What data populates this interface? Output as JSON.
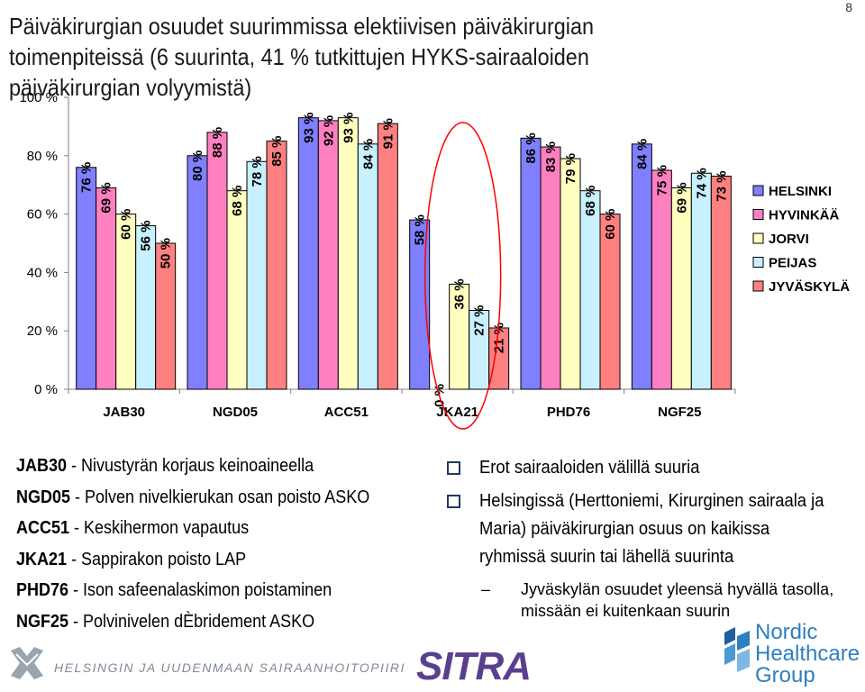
{
  "title": "Päiväkirurgian osuudet suurimmissa elektiivisen päiväkirurgian toimenpiteissä (6 suurinta, 41 % tutkittujen HYKS-sairaaloiden päiväkirurgian volyymistä)",
  "page_number": "8",
  "chart_data": {
    "type": "bar",
    "categories": [
      "JAB30",
      "NGD05",
      "ACC51",
      "JKA21",
      "PHD76",
      "NGF25"
    ],
    "series": [
      {
        "name": "HELSINKI",
        "color": "#8080ff",
        "values": [
          76,
          80,
          93,
          58,
          86,
          84
        ],
        "labels": [
          "76 %",
          "80 %",
          "93 %",
          "58 %",
          "86 %",
          "84 %"
        ]
      },
      {
        "name": "HYVINKÄÄ",
        "color": "#ff80c0",
        "values": [
          69,
          88,
          92,
          0,
          83,
          75
        ],
        "labels": [
          "69 %",
          "88 %",
          "92 %",
          "0 %",
          "83 %",
          "75 %"
        ]
      },
      {
        "name": "JORVI",
        "color": "#ffffc0",
        "values": [
          60,
          68,
          93,
          36,
          79,
          69
        ],
        "labels": [
          "60 %",
          "68 %",
          "93 %",
          "36 %",
          "79 %",
          "69 %"
        ]
      },
      {
        "name": "PEIJAS",
        "color": "#c8f0ff",
        "values": [
          56,
          78,
          84,
          27,
          68,
          74
        ],
        "labels": [
          "56 %",
          "78 %",
          "84 %",
          "27 %",
          "68 %",
          "74 %"
        ]
      },
      {
        "name": "JYVÄSKYLÄ",
        "color": "#ff8080",
        "values": [
          50,
          85,
          91,
          21,
          60,
          73
        ],
        "labels": [
          "50 %",
          "85 %",
          "91 %",
          "21 %",
          "60 %",
          "73 %"
        ]
      }
    ],
    "yticks": [
      "0 %",
      "20 %",
      "40 %",
      "60 %",
      "80 %",
      "100 %"
    ],
    "ylim": [
      0,
      100
    ],
    "legend_position": "right",
    "grid": false
  },
  "definitions": [
    {
      "code": "JAB30",
      "text": " - Nivustyrän korjaus keinoaineella"
    },
    {
      "code": "NGD05",
      "text": " - Polven nivelkierukan osan poisto ASKO"
    },
    {
      "code": "ACC51",
      "text": " - Keskihermon vapautus"
    },
    {
      "code": "JKA21",
      "text": " - Sappirakon poisto LAP"
    },
    {
      "code": "PHD76",
      "text": " - Ison safeenalaskimon poistaminen"
    },
    {
      "code": "NGF25",
      "text": " - Polvinivelen dÈbridement ASKO"
    }
  ],
  "notes": {
    "bullets": [
      "Erot sairaaloiden välillä suuria",
      "Helsingissä (Herttoniemi, Kirurginen sairaala ja Maria) päiväkirurgian osuus on kaikissa ryhmissä suurin tai lähellä suurinta"
    ],
    "sub": "Jyväskylän osuudet yleensä hyvällä tasolla, missään ei kuitenkaan suurin"
  },
  "footer": {
    "org": "HELSINGIN JA UUDENMAAN SAIRAANHOITOPIIRI",
    "sitra": "SITRA",
    "nhg_lines": [
      "Nordic",
      "Healthcare",
      "Group"
    ],
    "nhg_color": "#2e7fbf",
    "sitra_color": "#5b3f8f"
  }
}
